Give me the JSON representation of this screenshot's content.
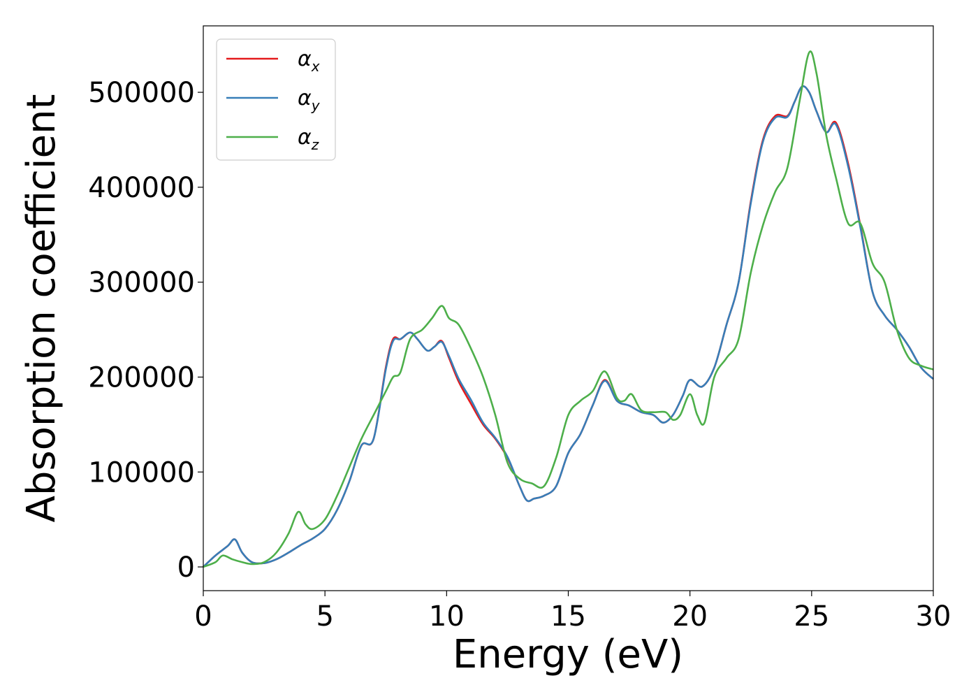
{
  "chart_data": {
    "type": "line",
    "title": "",
    "xlabel": "Energy (eV)",
    "ylabel": "Absorption coefficient",
    "xlim": [
      0,
      30
    ],
    "ylim": [
      -25000,
      570000
    ],
    "xticks": [
      0,
      5,
      10,
      15,
      20,
      25,
      30
    ],
    "yticks": [
      0,
      100000,
      200000,
      300000,
      400000,
      500000
    ],
    "grid": false,
    "legend": "top-left",
    "series": [
      {
        "name": "αx",
        "symbol": "α",
        "subscript": "x",
        "color": "#e41a1c",
        "x": [
          0,
          0.5,
          1.0,
          1.3,
          1.6,
          2.0,
          2.5,
          3.0,
          3.5,
          4.0,
          4.5,
          5.0,
          5.5,
          6.0,
          6.5,
          7.0,
          7.5,
          7.8,
          8.1,
          8.5,
          8.8,
          9.2,
          9.5,
          9.8,
          10.1,
          10.5,
          11.0,
          11.5,
          12.0,
          12.5,
          13.0,
          13.3,
          13.6,
          14.0,
          14.5,
          15.0,
          15.5,
          16.0,
          16.5,
          17.0,
          17.5,
          18.0,
          18.5,
          18.9,
          19.3,
          19.7,
          20.0,
          20.5,
          21.0,
          21.5,
          22.0,
          22.5,
          23.0,
          23.5,
          24.0,
          24.3,
          24.6,
          24.9,
          25.2,
          25.6,
          26.0,
          26.5,
          27.0,
          27.5,
          28.0,
          28.5,
          29.0,
          29.5,
          30.0
        ],
        "y": [
          0,
          12000,
          22000,
          29000,
          15000,
          5000,
          4000,
          8000,
          15000,
          23000,
          30000,
          40000,
          60000,
          90000,
          128000,
          135000,
          210000,
          240000,
          240000,
          247000,
          240000,
          228000,
          232000,
          238000,
          220000,
          195000,
          172000,
          150000,
          135000,
          115000,
          85000,
          70000,
          72000,
          75000,
          85000,
          120000,
          140000,
          170000,
          197000,
          175000,
          170000,
          163000,
          160000,
          152000,
          160000,
          180000,
          197000,
          190000,
          210000,
          255000,
          300000,
          385000,
          450000,
          475000,
          475000,
          490000,
          506000,
          500000,
          480000,
          458000,
          468000,
          425000,
          360000,
          290000,
          265000,
          250000,
          232000,
          210000,
          198000
        ]
      },
      {
        "name": "αy",
        "symbol": "α",
        "subscript": "y",
        "color": "#377eb8",
        "x": [
          0,
          0.5,
          1.0,
          1.3,
          1.6,
          2.0,
          2.5,
          3.0,
          3.5,
          4.0,
          4.5,
          5.0,
          5.5,
          6.0,
          6.5,
          7.0,
          7.5,
          7.8,
          8.1,
          8.5,
          8.8,
          9.2,
          9.5,
          9.8,
          10.1,
          10.5,
          11.0,
          11.5,
          12.0,
          12.5,
          13.0,
          13.3,
          13.6,
          14.0,
          14.5,
          15.0,
          15.5,
          16.0,
          16.5,
          17.0,
          17.5,
          18.0,
          18.5,
          18.9,
          19.3,
          19.7,
          20.0,
          20.5,
          21.0,
          21.5,
          22.0,
          22.5,
          23.0,
          23.5,
          24.0,
          24.3,
          24.6,
          24.9,
          25.2,
          25.6,
          26.0,
          26.5,
          27.0,
          27.5,
          28.0,
          28.5,
          29.0,
          29.5,
          30.0
        ],
        "y": [
          0,
          12000,
          22000,
          29000,
          15000,
          5000,
          4000,
          8000,
          15000,
          23000,
          30000,
          40000,
          60000,
          90000,
          128000,
          135000,
          208000,
          238000,
          240000,
          247000,
          240000,
          228000,
          232000,
          237000,
          222000,
          198000,
          176000,
          152000,
          136000,
          116000,
          85000,
          70000,
          72000,
          75000,
          85000,
          120000,
          140000,
          170000,
          196000,
          175000,
          170000,
          163000,
          160000,
          152000,
          160000,
          180000,
          197000,
          190000,
          210000,
          255000,
          300000,
          383000,
          448000,
          473000,
          474000,
          490000,
          506000,
          500000,
          480000,
          458000,
          466000,
          422000,
          358000,
          290000,
          265000,
          250000,
          232000,
          210000,
          198000
        ]
      },
      {
        "name": "αz",
        "symbol": "α",
        "subscript": "z",
        "color": "#4daf4a",
        "x": [
          0,
          0.5,
          0.8,
          1.2,
          1.6,
          2.0,
          2.5,
          3.0,
          3.5,
          3.9,
          4.2,
          4.5,
          5.0,
          5.5,
          6.0,
          6.5,
          7.0,
          7.5,
          7.8,
          8.1,
          8.5,
          9.0,
          9.4,
          9.8,
          10.1,
          10.5,
          11.0,
          11.5,
          12.0,
          12.5,
          13.0,
          13.5,
          14.0,
          14.5,
          15.0,
          15.5,
          16.0,
          16.5,
          17.0,
          17.3,
          17.6,
          18.0,
          18.5,
          19.0,
          19.3,
          19.6,
          20.0,
          20.3,
          20.6,
          21.0,
          21.5,
          22.0,
          22.5,
          23.0,
          23.5,
          24.0,
          24.5,
          24.9,
          25.2,
          25.6,
          26.0,
          26.5,
          27.0,
          27.5,
          28.0,
          28.5,
          29.0,
          29.5,
          30.0
        ],
        "y": [
          0,
          5000,
          12000,
          8000,
          5000,
          3000,
          5000,
          15000,
          35000,
          58000,
          45000,
          40000,
          50000,
          75000,
          105000,
          135000,
          160000,
          185000,
          200000,
          205000,
          240000,
          250000,
          262000,
          275000,
          262000,
          255000,
          230000,
          200000,
          160000,
          110000,
          93000,
          88000,
          85000,
          115000,
          160000,
          175000,
          185000,
          206000,
          178000,
          175000,
          182000,
          165000,
          163000,
          163000,
          155000,
          160000,
          182000,
          160000,
          152000,
          200000,
          220000,
          240000,
          310000,
          360000,
          395000,
          420000,
          490000,
          542000,
          520000,
          455000,
          410000,
          362000,
          362000,
          320000,
          300000,
          250000,
          220000,
          212000,
          208000
        ]
      }
    ]
  }
}
